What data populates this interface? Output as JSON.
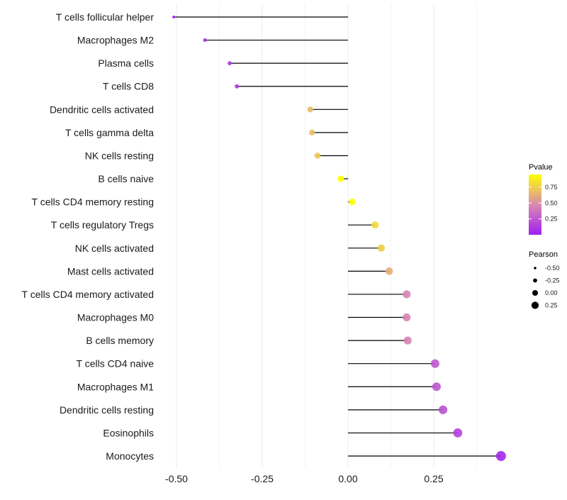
{
  "chart_data": {
    "type": "lollipop",
    "title": "",
    "xlabel": "",
    "ylabel": "",
    "xlim": [
      -0.52,
      0.46
    ],
    "x_ticks": [
      -0.5,
      -0.25,
      0.0,
      0.25
    ],
    "x_tick_labels": [
      "-0.50",
      "-0.25",
      "0.00",
      "0.25"
    ],
    "grid": true,
    "categories": [
      "T cells follicular helper",
      "Macrophages M2",
      "Plasma cells",
      "T cells CD8",
      "Dendritic cells activated",
      "T cells gamma delta",
      "NK cells resting",
      "B cells naive",
      "T cells CD4 memory resting",
      "T cells regulatory  Tregs ",
      "NK cells activated",
      "Mast cells activated",
      "T cells CD4 memory activated",
      "Macrophages M0",
      "B cells memory",
      "T cells CD4 naive",
      "Macrophages M1",
      "Dendritic cells resting",
      "Eosinophils",
      "Monocytes"
    ],
    "pearson": [
      -0.508,
      -0.417,
      -0.345,
      -0.324,
      -0.11,
      -0.105,
      -0.089,
      -0.021,
      0.012,
      0.079,
      0.097,
      0.12,
      0.171,
      0.171,
      0.174,
      0.254,
      0.258,
      0.277,
      0.32,
      0.446
    ],
    "pvalue": [
      0.01,
      0.05,
      0.1,
      0.12,
      0.68,
      0.69,
      0.72,
      0.95,
      0.95,
      0.8,
      0.75,
      0.62,
      0.45,
      0.45,
      0.44,
      0.25,
      0.24,
      0.22,
      0.15,
      0.03
    ],
    "legend": {
      "color": {
        "title": "Pvalue",
        "ticks": [
          0.25,
          0.5,
          0.75
        ],
        "tick_labels": [
          "0.25",
          "0.50",
          "0.75"
        ],
        "range": [
          0,
          0.95
        ],
        "low": "#A020F0",
        "mid": "#D98AB0",
        "high": "#FFFF00"
      },
      "size": {
        "title": "Pearson",
        "values": [
          -0.5,
          -0.25,
          0.0,
          0.25
        ],
        "labels": [
          "-0.50",
          "-0.25",
          "0.00",
          "0.25"
        ]
      },
      "placement": "right"
    }
  }
}
